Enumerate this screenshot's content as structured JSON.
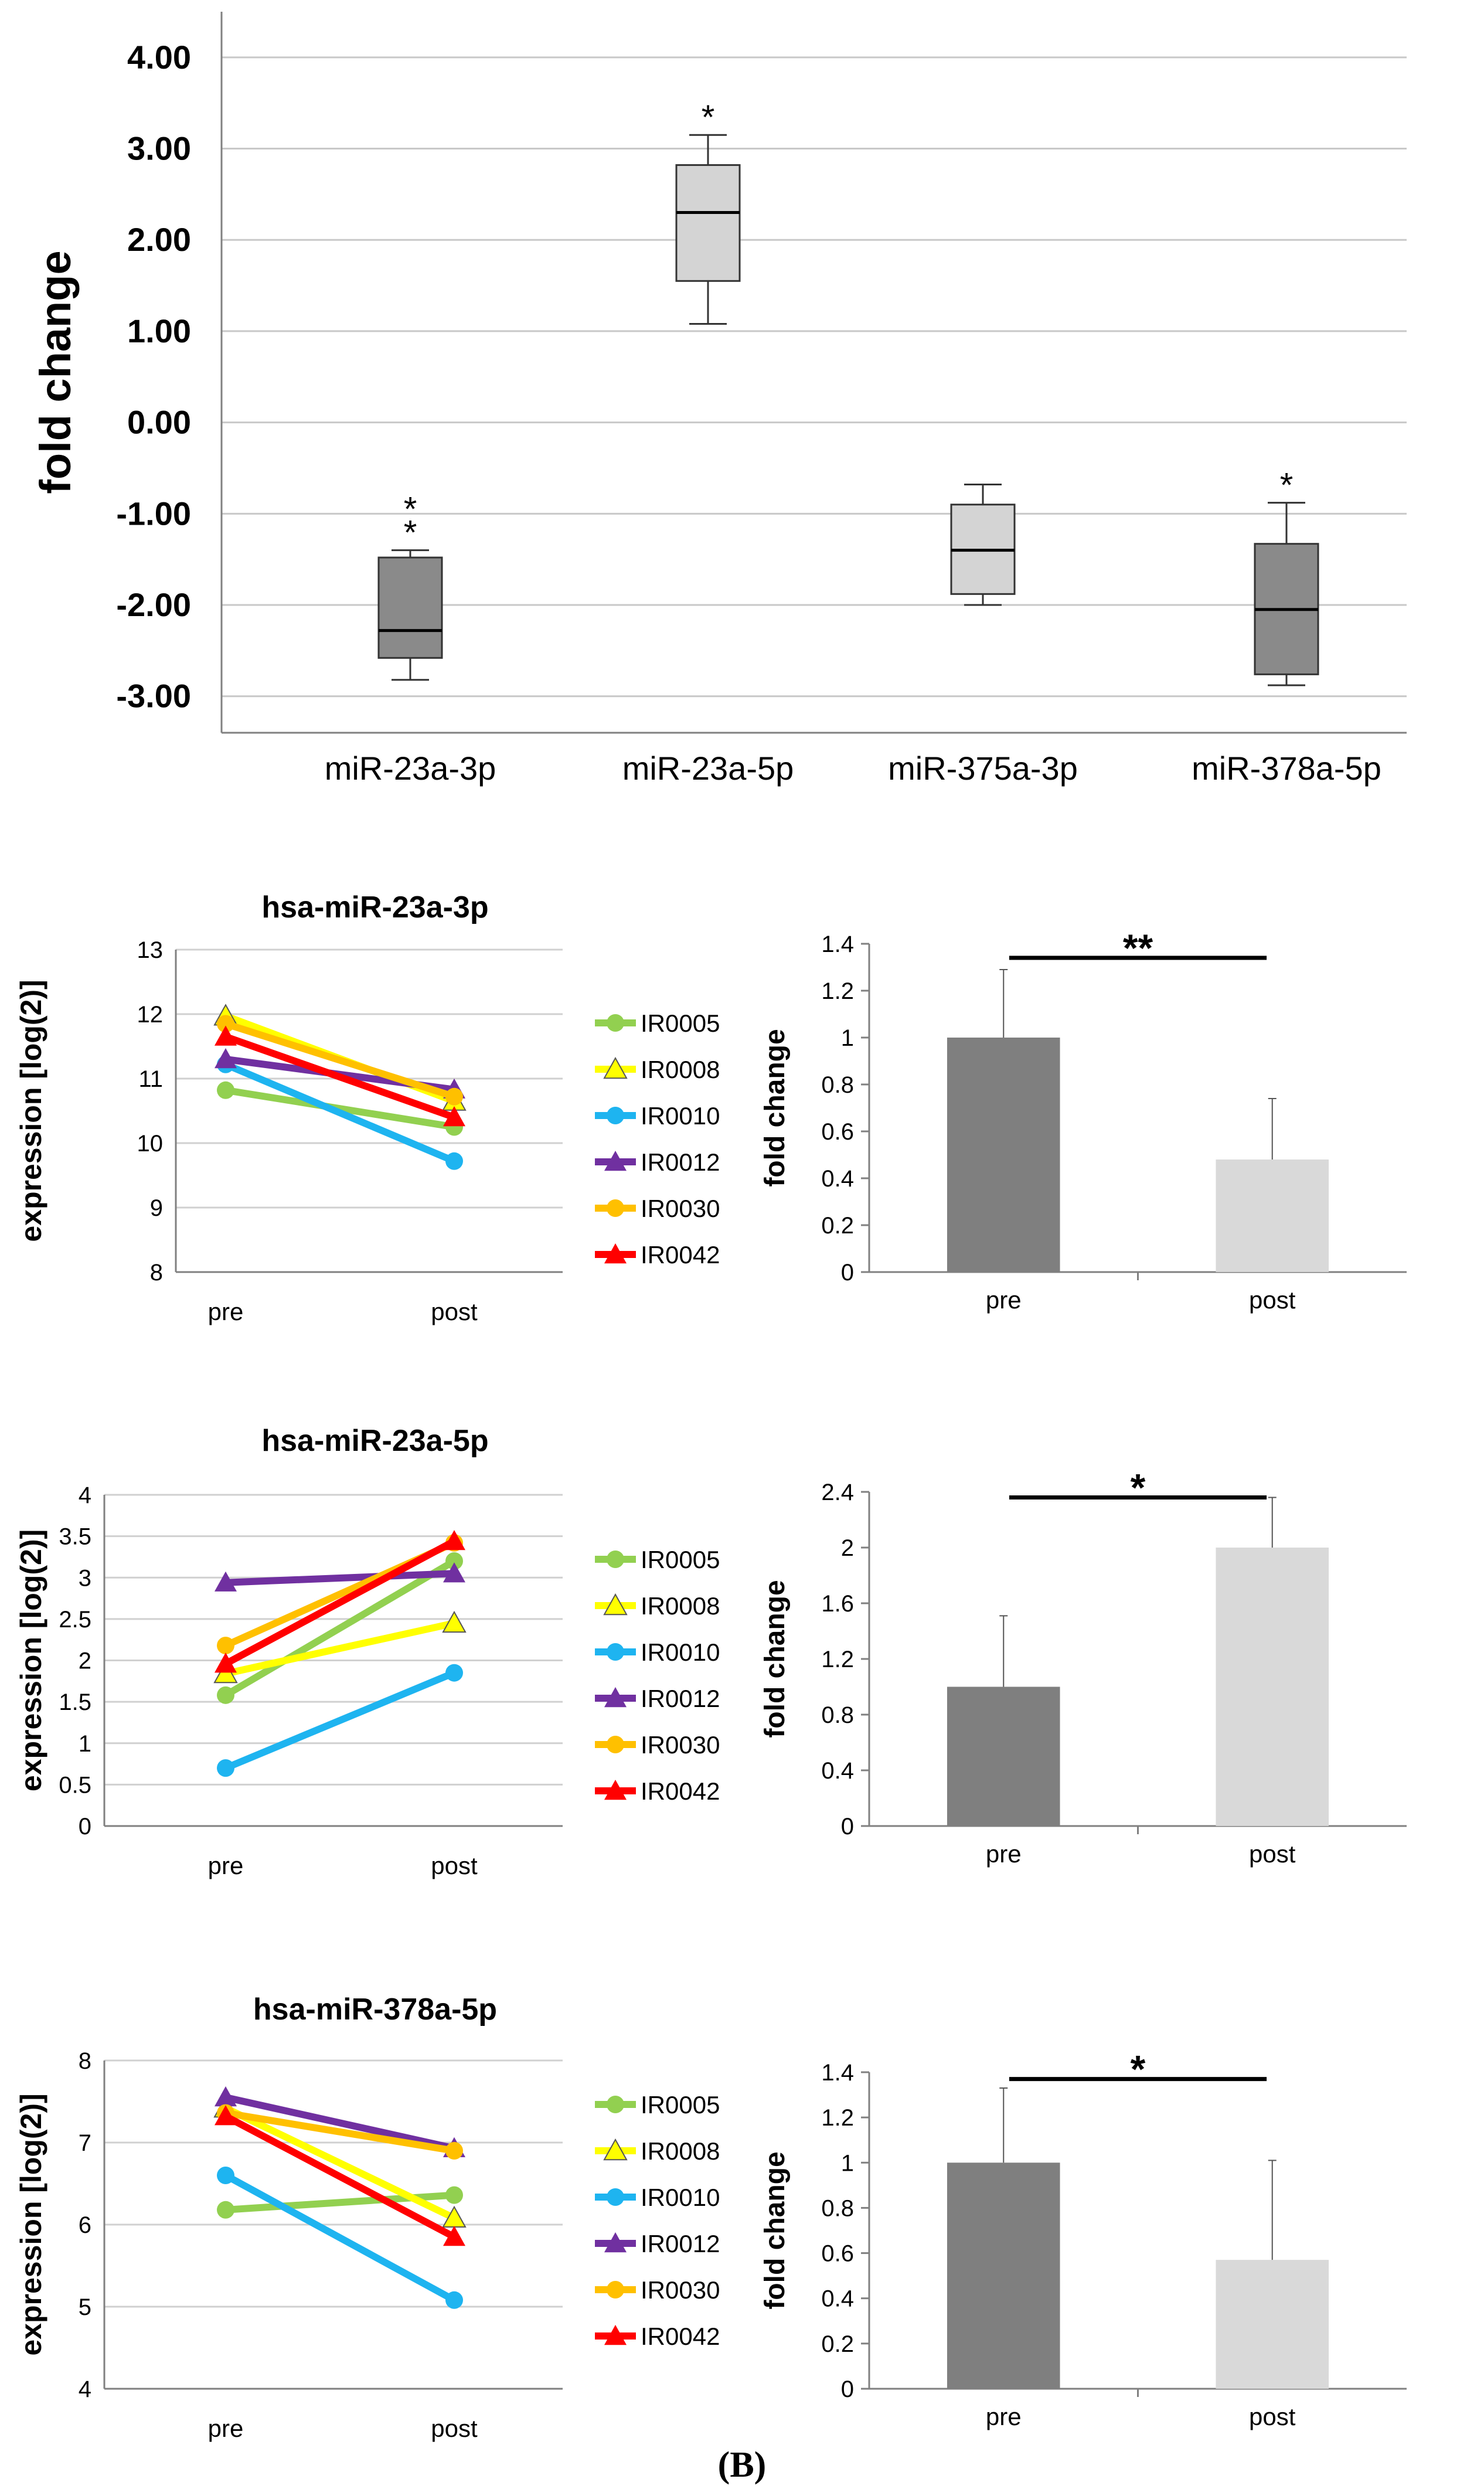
{
  "figure": {
    "panel_label": "(B)"
  },
  "chart_data": [
    {
      "id": "box",
      "type": "boxplot",
      "ylabel": "fold change",
      "yticks": [
        "-3.00",
        "-2.00",
        "-1.00",
        "0.00",
        "1.00",
        "2.00",
        "3.00",
        "4.00"
      ],
      "ylim": [
        -3.4,
        4.5
      ],
      "grid": true,
      "boxes": [
        {
          "category": "miR-23a-3p",
          "min": -2.82,
          "q1": -2.58,
          "median": -2.28,
          "q3": -1.48,
          "max": -1.4,
          "color": "#8a8a8a",
          "sig": "**"
        },
        {
          "category": "miR-23a-5p",
          "min": 1.08,
          "q1": 1.55,
          "median": 2.3,
          "q3": 2.82,
          "max": 3.15,
          "color": "#d4d4d4",
          "sig": "*"
        },
        {
          "category": "miR-375a-3p",
          "min": -2.0,
          "q1": -1.88,
          "median": -1.4,
          "q3": -0.9,
          "max": -0.68,
          "color": "#d4d4d4",
          "sig": ""
        },
        {
          "category": "miR-378a-5p",
          "min": -2.88,
          "q1": -2.76,
          "median": -2.05,
          "q3": -1.33,
          "max": -0.88,
          "color": "#8a8a8a",
          "sig": "*"
        }
      ]
    },
    {
      "id": "line1",
      "type": "line",
      "title": "hsa-miR-23a-3p",
      "ylabel": "expression [log(2)]",
      "categories": [
        "pre",
        "post"
      ],
      "yticks": [
        "8",
        "9",
        "10",
        "11",
        "12",
        "13"
      ],
      "ylim": [
        8,
        13
      ],
      "series": [
        {
          "name": "IR0005",
          "values": [
            10.82,
            10.25
          ],
          "color": "#92d050",
          "marker": "circle"
        },
        {
          "name": "IR0008",
          "values": [
            11.97,
            10.65
          ],
          "color": "#ffff00",
          "marker": "triangle-open"
        },
        {
          "name": "IR0010",
          "values": [
            11.22,
            9.72
          ],
          "color": "#1eb4f0",
          "marker": "circle"
        },
        {
          "name": "IR0012",
          "values": [
            11.3,
            10.83
          ],
          "color": "#7030a0",
          "marker": "triangle"
        },
        {
          "name": "IR0030",
          "values": [
            11.85,
            10.72
          ],
          "color": "#ffc000",
          "marker": "circle"
        },
        {
          "name": "IR0042",
          "values": [
            11.65,
            10.4
          ],
          "color": "#ff0000",
          "marker": "triangle"
        }
      ]
    },
    {
      "id": "bar1",
      "type": "bar",
      "ylabel": "fold change",
      "categories": [
        "pre",
        "post"
      ],
      "values": [
        1.0,
        0.48
      ],
      "errors": [
        0.29,
        0.26
      ],
      "colors": [
        "#7f7f7f",
        "#d9d9d9"
      ],
      "yticks": [
        "0",
        "0.2",
        "0.4",
        "0.6",
        "0.8",
        "1",
        "1.2",
        "1.4"
      ],
      "ylim": [
        0,
        1.4
      ],
      "sig": "**",
      "sig_level": 1.34
    },
    {
      "id": "line2",
      "type": "line",
      "title": "hsa-miR-23a-5p",
      "ylabel": "expression [log(2)]",
      "categories": [
        "pre",
        "post"
      ],
      "yticks": [
        "0",
        "0.5",
        "1",
        "1.5",
        "2",
        "2.5",
        "3",
        "3.5",
        "4"
      ],
      "ylim": [
        0,
        4
      ],
      "series": [
        {
          "name": "IR0005",
          "values": [
            1.58,
            3.2
          ],
          "color": "#92d050",
          "marker": "circle"
        },
        {
          "name": "IR0008",
          "values": [
            1.84,
            2.45
          ],
          "color": "#ffff00",
          "marker": "triangle-open"
        },
        {
          "name": "IR0010",
          "values": [
            0.7,
            1.85
          ],
          "color": "#1eb4f0",
          "marker": "circle"
        },
        {
          "name": "IR0012",
          "values": [
            2.94,
            3.05
          ],
          "color": "#7030a0",
          "marker": "triangle"
        },
        {
          "name": "IR0030",
          "values": [
            2.18,
            3.42
          ],
          "color": "#ffc000",
          "marker": "circle"
        },
        {
          "name": "IR0042",
          "values": [
            1.96,
            3.44
          ],
          "color": "#ff0000",
          "marker": "triangle"
        }
      ]
    },
    {
      "id": "bar2",
      "type": "bar",
      "ylabel": "fold change",
      "categories": [
        "pre",
        "post"
      ],
      "values": [
        1.0,
        2.0
      ],
      "errors": [
        0.51,
        0.36
      ],
      "colors": [
        "#7f7f7f",
        "#d9d9d9"
      ],
      "yticks": [
        "0",
        "0.4",
        "0.8",
        "1.2",
        "1.6",
        "2",
        "2.4"
      ],
      "ylim": [
        0,
        2.4
      ],
      "sig": "*",
      "sig_level": 2.36
    },
    {
      "id": "line3",
      "type": "line",
      "title": "hsa-miR-378a-5p",
      "ylabel": "expression [log(2)]",
      "categories": [
        "pre",
        "post"
      ],
      "yticks": [
        "4",
        "5",
        "6",
        "7",
        "8"
      ],
      "ylim": [
        4,
        8
      ],
      "series": [
        {
          "name": "IR0005",
          "values": [
            6.18,
            6.36
          ],
          "color": "#92d050",
          "marker": "circle"
        },
        {
          "name": "IR0008",
          "values": [
            7.42,
            6.08
          ],
          "color": "#ffff00",
          "marker": "triangle-open"
        },
        {
          "name": "IR0010",
          "values": [
            6.6,
            5.08
          ],
          "color": "#1eb4f0",
          "marker": "circle"
        },
        {
          "name": "IR0012",
          "values": [
            7.55,
            6.93
          ],
          "color": "#7030a0",
          "marker": "triangle"
        },
        {
          "name": "IR0030",
          "values": [
            7.36,
            6.9
          ],
          "color": "#ffc000",
          "marker": "circle"
        },
        {
          "name": "IR0042",
          "values": [
            7.32,
            5.85
          ],
          "color": "#ff0000",
          "marker": "triangle"
        }
      ]
    },
    {
      "id": "bar3",
      "type": "bar",
      "ylabel": "fold change",
      "categories": [
        "pre",
        "post"
      ],
      "values": [
        1.0,
        0.57
      ],
      "errors": [
        0.33,
        0.44
      ],
      "colors": [
        "#7f7f7f",
        "#d9d9d9"
      ],
      "yticks": [
        "0",
        "0.2",
        "0.4",
        "0.6",
        "0.8",
        "1",
        "1.2",
        "1.4"
      ],
      "ylim": [
        0,
        1.4
      ],
      "sig": "*",
      "sig_level": 1.37
    }
  ]
}
